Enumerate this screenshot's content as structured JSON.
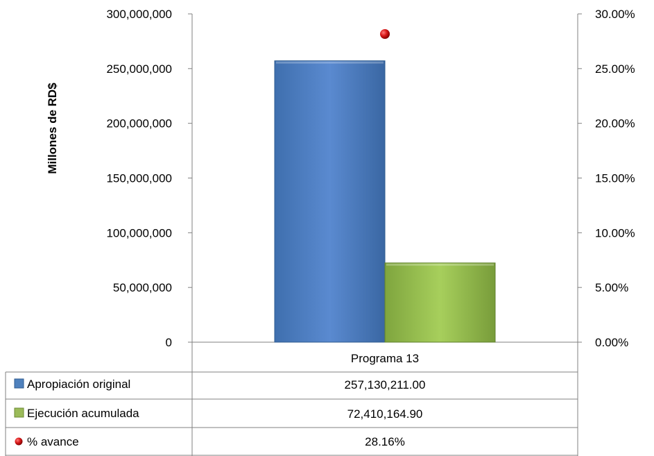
{
  "chart_data": {
    "type": "bar",
    "categories": [
      "Programa 13"
    ],
    "ylabel": "Millones de RD$",
    "ylim": [
      0,
      300000000
    ],
    "y2lim": [
      0,
      0.3
    ],
    "yticks": [
      "0",
      "50,000,000",
      "100,000,000",
      "150,000,000",
      "200,000,000",
      "250,000,000",
      "300,000,000"
    ],
    "y2ticks": [
      "0.00%",
      "5.00%",
      "10.00%",
      "15.00%",
      "20.00%",
      "25.00%",
      "30.00%"
    ],
    "grid": false,
    "legend": "data-table",
    "series": [
      {
        "name": "Apropiación original",
        "values": [
          257130211.0
        ],
        "color": "#4f81bd",
        "kind": "bar",
        "axis": "left"
      },
      {
        "name": "Ejecución acumulada",
        "values": [
          72410164.9
        ],
        "color": "#9bbb59",
        "kind": "bar",
        "axis": "left"
      },
      {
        "name": "% avance",
        "values": [
          0.2816
        ],
        "color": "#c00000",
        "kind": "marker",
        "axis": "right"
      }
    ],
    "table": {
      "header": "Programa 13",
      "rows": [
        {
          "label": "Apropiación original",
          "value": "257,130,211.00"
        },
        {
          "label": "Ejecución acumulada",
          "value": "72,410,164.90"
        },
        {
          "label": "% avance",
          "value": "28.16%"
        }
      ]
    }
  }
}
